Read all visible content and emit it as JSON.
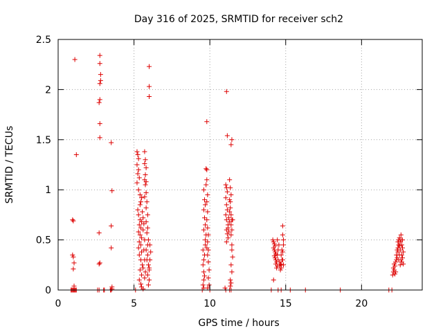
{
  "chart_data": {
    "type": "scatter",
    "title": "Day 316 of 2025, SRMTID for receiver sch2",
    "xlabel": "GPS time / hours",
    "ylabel": "SRMTID / TECUs",
    "xlim": [
      0,
      24
    ],
    "ylim": [
      0,
      2.5
    ],
    "xticks": [
      0,
      5,
      10,
      15,
      20
    ],
    "xtick_labels": [
      "0",
      "5",
      "10",
      "15",
      "20"
    ],
    "yticks": [
      0,
      0.5,
      1,
      1.5,
      2,
      2.5
    ],
    "ytick_labels": [
      "0",
      "0.5",
      "1",
      "1.5",
      "2",
      "2.5"
    ],
    "grid": true,
    "marker": "+",
    "color": "#dd0000",
    "series": [
      {
        "name": "sch2",
        "points": [
          [
            0.85,
            0
          ],
          [
            0.9,
            0
          ],
          [
            0.95,
            0
          ],
          [
            1.0,
            0
          ],
          [
            1.05,
            0
          ],
          [
            1.1,
            0
          ],
          [
            1.15,
            0
          ],
          [
            1.2,
            0
          ],
          [
            0.95,
            0.7
          ],
          [
            1.0,
            0.69
          ],
          [
            0.95,
            0.35
          ],
          [
            1.0,
            0.33
          ],
          [
            1.05,
            0.27
          ],
          [
            1.0,
            0.21
          ],
          [
            1.05,
            0.04
          ],
          [
            1.1,
            2.3
          ],
          [
            1.2,
            1.35
          ],
          [
            2.6,
            0
          ],
          [
            2.7,
            0
          ],
          [
            3.0,
            0
          ],
          [
            3.05,
            0
          ],
          [
            2.75,
            2.34
          ],
          [
            2.75,
            2.26
          ],
          [
            2.8,
            2.15
          ],
          [
            2.8,
            2.09
          ],
          [
            2.75,
            2.06
          ],
          [
            2.75,
            1.9
          ],
          [
            2.7,
            1.87
          ],
          [
            2.75,
            1.66
          ],
          [
            2.75,
            1.52
          ],
          [
            2.7,
            0.57
          ],
          [
            2.75,
            0.27
          ],
          [
            2.7,
            0.26
          ],
          [
            3.45,
            0
          ],
          [
            3.5,
            0
          ],
          [
            3.55,
            0.01
          ],
          [
            3.55,
            0.03
          ],
          [
            3.5,
            1.47
          ],
          [
            3.55,
            0.99
          ],
          [
            3.5,
            0.64
          ],
          [
            3.5,
            0.42
          ],
          [
            5.1,
            0
          ],
          [
            5.2,
            1.38
          ],
          [
            5.25,
            1.35
          ],
          [
            5.3,
            1.31
          ],
          [
            5.2,
            1.25
          ],
          [
            5.3,
            1.2
          ],
          [
            5.25,
            1.16
          ],
          [
            5.35,
            1.12
          ],
          [
            5.2,
            1.07
          ],
          [
            5.3,
            1.0
          ],
          [
            5.4,
            0.95
          ],
          [
            5.5,
            0.92
          ],
          [
            5.45,
            0.88
          ],
          [
            5.4,
            0.85
          ],
          [
            5.25,
            0.8
          ],
          [
            5.3,
            0.75
          ],
          [
            5.4,
            0.7
          ],
          [
            5.5,
            0.68
          ],
          [
            5.35,
            0.65
          ],
          [
            5.45,
            0.62
          ],
          [
            5.3,
            0.58
          ],
          [
            5.4,
            0.55
          ],
          [
            5.5,
            0.52
          ],
          [
            5.35,
            0.48
          ],
          [
            5.45,
            0.45
          ],
          [
            5.3,
            0.42
          ],
          [
            5.5,
            0.38
          ],
          [
            5.35,
            0.35
          ],
          [
            5.45,
            0.3
          ],
          [
            5.55,
            0.25
          ],
          [
            5.4,
            0.2
          ],
          [
            5.5,
            0.15
          ],
          [
            5.35,
            0.1
          ],
          [
            5.45,
            0.06
          ],
          [
            5.5,
            0.03
          ],
          [
            5.6,
            0.01
          ],
          [
            5.55,
            0.78
          ],
          [
            5.6,
            0.72
          ],
          [
            5.65,
            0.66
          ],
          [
            5.6,
            0.6
          ],
          [
            5.7,
            0.5
          ],
          [
            5.65,
            0.4
          ],
          [
            5.7,
            0.3
          ],
          [
            5.6,
            0.22
          ],
          [
            5.75,
            0.18
          ],
          [
            5.7,
            0.12
          ],
          [
            5.7,
            1.38
          ],
          [
            5.75,
            1.3
          ],
          [
            5.7,
            1.26
          ],
          [
            5.8,
            1.22
          ],
          [
            5.75,
            1.15
          ],
          [
            5.7,
            1.1
          ],
          [
            5.8,
            1.08
          ],
          [
            5.75,
            1.05
          ],
          [
            5.8,
            0.97
          ],
          [
            5.7,
            0.93
          ],
          [
            5.85,
            0.88
          ],
          [
            5.8,
            0.82
          ],
          [
            5.9,
            0.75
          ],
          [
            5.8,
            0.68
          ],
          [
            5.9,
            0.62
          ],
          [
            5.85,
            0.57
          ],
          [
            5.95,
            0.5
          ],
          [
            5.9,
            0.45
          ],
          [
            5.8,
            0.4
          ],
          [
            5.9,
            0.35
          ],
          [
            5.85,
            0.3
          ],
          [
            5.95,
            0.25
          ],
          [
            6.0,
            0.2
          ],
          [
            5.9,
            0.15
          ],
          [
            6.0,
            0.1
          ],
          [
            5.95,
            0.05
          ],
          [
            6.05,
            0.45
          ],
          [
            6.1,
            0.38
          ],
          [
            6.05,
            0.3
          ],
          [
            6.0,
            0.22
          ],
          [
            6.0,
            2.23
          ],
          [
            6.0,
            2.03
          ],
          [
            6.0,
            1.93
          ],
          [
            9.5,
            0
          ],
          [
            9.6,
            0.02
          ],
          [
            9.55,
            0.05
          ],
          [
            9.55,
            0.4
          ],
          [
            9.6,
            0.3
          ],
          [
            9.55,
            0.25
          ],
          [
            9.6,
            0.18
          ],
          [
            9.65,
            0.14
          ],
          [
            9.6,
            0.1
          ],
          [
            9.65,
            0.35
          ],
          [
            9.7,
            0.45
          ],
          [
            9.6,
            1.0
          ],
          [
            9.65,
            0.9
          ],
          [
            9.7,
            0.85
          ],
          [
            9.6,
            0.8
          ],
          [
            9.65,
            0.72
          ],
          [
            9.7,
            0.65
          ],
          [
            9.6,
            0.6
          ],
          [
            9.75,
            0.55
          ],
          [
            9.7,
            0.5
          ],
          [
            9.8,
            0.42
          ],
          [
            9.75,
            1.21
          ],
          [
            9.8,
            1.2
          ],
          [
            9.8,
            1.1
          ],
          [
            9.75,
            1.05
          ],
          [
            9.85,
            0.95
          ],
          [
            9.8,
            0.88
          ],
          [
            9.85,
            0.78
          ],
          [
            9.8,
            0.7
          ],
          [
            9.85,
            0.62
          ],
          [
            9.9,
            0.55
          ],
          [
            9.85,
            0.48
          ],
          [
            9.9,
            0.4
          ],
          [
            9.85,
            0.35
          ],
          [
            9.9,
            0.28
          ],
          [
            9.95,
            0.2
          ],
          [
            9.9,
            0.12
          ],
          [
            9.95,
            0.05
          ],
          [
            9.85,
            0.02
          ],
          [
            9.8,
            1.68
          ],
          [
            10.0,
            0
          ],
          [
            11.0,
            0.02
          ],
          [
            11.05,
            0
          ],
          [
            11.1,
            1.98
          ],
          [
            11.15,
            1.54
          ],
          [
            11.05,
            1.05
          ],
          [
            11.1,
            1.02
          ],
          [
            11.15,
            0.98
          ],
          [
            11.05,
            0.92
          ],
          [
            11.1,
            0.85
          ],
          [
            11.15,
            0.8
          ],
          [
            11.05,
            0.75
          ],
          [
            11.1,
            0.7
          ],
          [
            11.2,
            0.65
          ],
          [
            11.1,
            0.6
          ],
          [
            11.15,
            0.56
          ],
          [
            11.2,
            0.52
          ],
          [
            11.1,
            0.48
          ],
          [
            11.25,
            0.58
          ],
          [
            11.2,
            0.62
          ],
          [
            11.3,
            0.68
          ],
          [
            11.25,
            0.72
          ],
          [
            11.3,
            0.78
          ],
          [
            11.35,
            0.82
          ],
          [
            11.3,
            0.9
          ],
          [
            11.3,
            1.1
          ],
          [
            11.35,
            1.02
          ],
          [
            11.4,
            0.95
          ],
          [
            11.35,
            0.88
          ],
          [
            11.4,
            0.75
          ],
          [
            11.45,
            0.7
          ],
          [
            11.4,
            0.65
          ],
          [
            11.45,
            0.6
          ],
          [
            11.4,
            0.55
          ],
          [
            11.45,
            0.45
          ],
          [
            11.45,
            1.5
          ],
          [
            11.4,
            1.45
          ],
          [
            11.5,
            0.7
          ],
          [
            11.45,
            0.4
          ],
          [
            11.5,
            0.33
          ],
          [
            11.4,
            0.25
          ],
          [
            11.45,
            0.18
          ],
          [
            11.35,
            0.1
          ],
          [
            11.4,
            0.07
          ],
          [
            11.35,
            0.04
          ],
          [
            11.3,
            0
          ],
          [
            11.4,
            0
          ],
          [
            14.05,
            0
          ],
          [
            14.2,
            0.1
          ],
          [
            14.15,
            0.5
          ],
          [
            14.2,
            0.48
          ],
          [
            14.25,
            0.46
          ],
          [
            14.3,
            0.44
          ],
          [
            14.2,
            0.42
          ],
          [
            14.25,
            0.4
          ],
          [
            14.3,
            0.38
          ],
          [
            14.35,
            0.36
          ],
          [
            14.25,
            0.34
          ],
          [
            14.3,
            0.32
          ],
          [
            14.35,
            0.3
          ],
          [
            14.4,
            0.28
          ],
          [
            14.35,
            0.26
          ],
          [
            14.45,
            0.24
          ],
          [
            14.4,
            0.22
          ],
          [
            14.5,
            0.3
          ],
          [
            14.45,
            0.35
          ],
          [
            14.5,
            0.4
          ],
          [
            14.55,
            0.45
          ],
          [
            14.45,
            0.5
          ],
          [
            14.6,
            0.28
          ],
          [
            14.65,
            0.26
          ],
          [
            14.6,
            0.24
          ],
          [
            14.7,
            0.22
          ],
          [
            14.65,
            0.2
          ],
          [
            14.7,
            0.25
          ],
          [
            14.75,
            0.3
          ],
          [
            14.7,
            0.35
          ],
          [
            14.75,
            0.4
          ],
          [
            14.8,
            0.38
          ],
          [
            14.8,
            0.64
          ],
          [
            14.8,
            0.55
          ],
          [
            14.85,
            0.5
          ],
          [
            14.85,
            0.45
          ],
          [
            14.8,
            0.3
          ],
          [
            14.85,
            0.25
          ],
          [
            14.5,
            0
          ],
          [
            14.7,
            0
          ],
          [
            15.3,
            0
          ],
          [
            16.3,
            0
          ],
          [
            18.6,
            0
          ],
          [
            21.8,
            0
          ],
          [
            22.0,
            0
          ],
          [
            22.05,
            0.15
          ],
          [
            22.1,
            0.18
          ],
          [
            22.15,
            0.2
          ],
          [
            22.1,
            0.22
          ],
          [
            22.2,
            0.24
          ],
          [
            22.15,
            0.26
          ],
          [
            22.2,
            0.16
          ],
          [
            22.25,
            0.28
          ],
          [
            22.3,
            0.3
          ],
          [
            22.25,
            0.18
          ],
          [
            22.35,
            0.32
          ],
          [
            22.3,
            0.35
          ],
          [
            22.4,
            0.38
          ],
          [
            22.35,
            0.4
          ],
          [
            22.4,
            0.42
          ],
          [
            22.45,
            0.45
          ],
          [
            22.4,
            0.48
          ],
          [
            22.45,
            0.5
          ],
          [
            22.5,
            0.52
          ],
          [
            22.45,
            0.3
          ],
          [
            22.5,
            0.35
          ],
          [
            22.55,
            0.4
          ],
          [
            22.5,
            0.44
          ],
          [
            22.55,
            0.48
          ],
          [
            22.6,
            0.5
          ],
          [
            22.55,
            0.25
          ],
          [
            22.6,
            0.3
          ],
          [
            22.65,
            0.35
          ],
          [
            22.6,
            0.55
          ],
          [
            22.65,
            0.45
          ],
          [
            22.7,
            0.5
          ],
          [
            22.65,
            0.28
          ],
          [
            22.7,
            0.32
          ],
          [
            22.75,
            0.38
          ],
          [
            22.7,
            0.42
          ],
          [
            22.75,
            0.26
          ]
        ]
      }
    ]
  }
}
